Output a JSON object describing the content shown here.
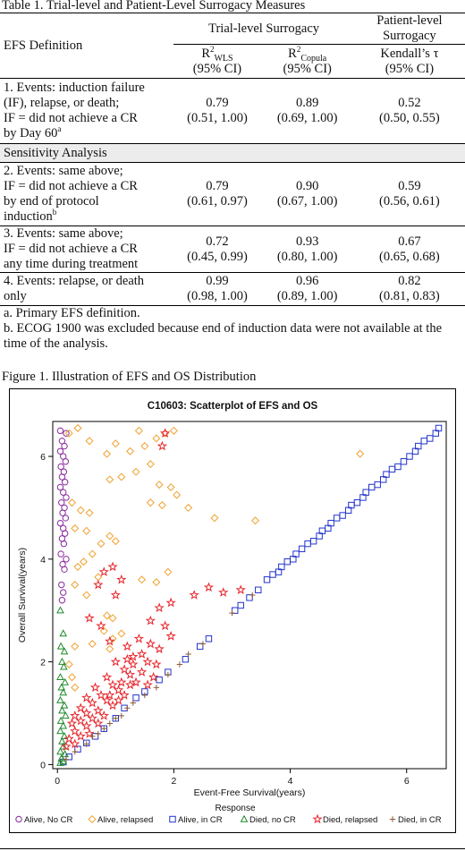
{
  "table": {
    "caption": "Table 1. Trial-level and Patient-Level Surrogacy Measures",
    "header": {
      "efs_definition": "EFS Definition",
      "trial_level": "Trial-level Surrogacy",
      "patient_level_line1": "Patient-level",
      "patient_level_line2": "Surrogacy",
      "r2_wls_main": "R",
      "r2_wls_sup": "2",
      "r2_wls_sub": "WLS",
      "r2_copula_main": "R",
      "r2_copula_sup": "2",
      "r2_copula_sub": "Copula",
      "kendall": "Kendall’s τ",
      "ci": "(95% CI)"
    },
    "rows": [
      {
        "def_lines": [
          "1. Events: induction failure",
          "(IF), relapse, or death;",
          "IF = did not achieve a CR",
          "by Day 60"
        ],
        "def_sup": "a",
        "wls": "0.79",
        "wls_ci": "(0.51, 1.00)",
        "copula": "0.89",
        "copula_ci": "(0.69, 1.00)",
        "kendall": "0.52",
        "kendall_ci": "(0.50, 0.55)"
      },
      {
        "def_lines": [
          "2. Events: same above;",
          "IF = did not achieve a CR",
          "by end of protocol",
          "induction"
        ],
        "def_sup": "b",
        "wls": "0.79",
        "wls_ci": "(0.61, 0.97)",
        "copula": "0.90",
        "copula_ci": "(0.67, 1.00)",
        "kendall": "0.59",
        "kendall_ci": "(0.56, 0.61)"
      },
      {
        "def_lines": [
          "3. Events: same above;",
          "IF = did not achieve a CR",
          "any time during treatment"
        ],
        "wls": "0.72",
        "wls_ci": "(0.45, 0.99)",
        "copula": "0.93",
        "copula_ci": "(0.80, 1.00)",
        "kendall": "0.67",
        "kendall_ci": "(0.65, 0.68)"
      },
      {
        "def_lines": [
          "4. Events: relapse, or death",
          "only"
        ],
        "wls": "0.99",
        "wls_ci": "(0.98, 1.00)",
        "copula": "0.96",
        "copula_ci": "(0.89, 1.00)",
        "kendall": "0.82",
        "kendall_ci": "(0.81, 0.83)"
      }
    ],
    "sensitivity_label": "Sensitivity Analysis",
    "footnote_a": "a. Primary EFS definition.",
    "footnote_b": "b. ECOG 1900 was excluded because end of induction data were not available at the time of the analysis."
  },
  "figure": {
    "caption": "Figure 1. Illustration of EFS and OS Distribution"
  },
  "chart_data": {
    "type": "scatter",
    "title": "C10603: Scatterplot of EFS and OS",
    "xlabel": "Event-Free Survival(years)",
    "ylabel": "Overall Survival(years)",
    "xlim": [
      0,
      6.6
    ],
    "ylim": [
      0,
      6.6
    ],
    "xticks": [
      "0",
      "2",
      "4",
      "6"
    ],
    "yticks": [
      "0",
      "2",
      "4",
      "6"
    ],
    "legend_title": "Response",
    "legend_position": "bottom",
    "series": [
      {
        "name": "Alive, No CR",
        "marker": "circle",
        "color": "#8a2a9e",
        "points": [
          [
            0.05,
            6.5
          ],
          [
            0.15,
            6.45
          ],
          [
            0.08,
            6.3
          ],
          [
            0.12,
            6.2
          ],
          [
            0.05,
            6.1
          ],
          [
            0.1,
            6.0
          ],
          [
            0.14,
            5.9
          ],
          [
            0.06,
            5.8
          ],
          [
            0.11,
            5.7
          ],
          [
            0.08,
            5.6
          ],
          [
            0.13,
            5.5
          ],
          [
            0.05,
            5.4
          ],
          [
            0.1,
            5.3
          ],
          [
            0.15,
            5.2
          ],
          [
            0.07,
            5.1
          ],
          [
            0.12,
            5.0
          ],
          [
            0.09,
            4.9
          ],
          [
            0.14,
            4.8
          ],
          [
            0.05,
            4.7
          ],
          [
            0.1,
            4.6
          ],
          [
            0.13,
            4.5
          ],
          [
            0.08,
            4.4
          ],
          [
            0.11,
            4.3
          ],
          [
            0.06,
            4.1
          ],
          [
            0.15,
            4.0
          ],
          [
            0.09,
            3.9
          ],
          [
            0.12,
            3.8
          ],
          [
            0.07,
            3.5
          ],
          [
            0.1,
            3.35
          ],
          [
            0.08,
            3.2
          ]
        ]
      },
      {
        "name": "Alive, relapsed",
        "marker": "diamond",
        "color": "#f0a12e",
        "points": [
          [
            0.35,
            6.55
          ],
          [
            0.2,
            6.45
          ],
          [
            0.55,
            6.3
          ],
          [
            0.85,
            6.05
          ],
          [
            1.0,
            6.25
          ],
          [
            1.25,
            6.1
          ],
          [
            1.4,
            6.5
          ],
          [
            1.5,
            6.2
          ],
          [
            1.7,
            6.35
          ],
          [
            2.0,
            6.5
          ],
          [
            1.85,
            6.45
          ],
          [
            1.6,
            5.85
          ],
          [
            1.35,
            5.7
          ],
          [
            1.1,
            5.6
          ],
          [
            0.9,
            5.55
          ],
          [
            1.75,
            5.45
          ],
          [
            1.95,
            5.4
          ],
          [
            2.05,
            5.25
          ],
          [
            1.6,
            5.1
          ],
          [
            1.8,
            5.05
          ],
          [
            2.25,
            5.0
          ],
          [
            2.7,
            4.8
          ],
          [
            3.4,
            4.75
          ],
          [
            0.25,
            5.1
          ],
          [
            0.4,
            4.95
          ],
          [
            0.55,
            4.9
          ],
          [
            0.3,
            4.6
          ],
          [
            0.5,
            4.55
          ],
          [
            0.75,
            4.3
          ],
          [
            1.0,
            4.35
          ],
          [
            0.9,
            4.45
          ],
          [
            0.6,
            4.1
          ],
          [
            0.45,
            3.95
          ],
          [
            0.35,
            3.85
          ],
          [
            0.7,
            3.65
          ],
          [
            0.3,
            3.5
          ],
          [
            0.5,
            3.3
          ],
          [
            1.45,
            3.6
          ],
          [
            1.7,
            3.55
          ],
          [
            1.9,
            3.75
          ],
          [
            0.85,
            2.9
          ],
          [
            0.95,
            2.85
          ],
          [
            0.8,
            2.6
          ],
          [
            0.95,
            2.45
          ],
          [
            0.6,
            2.35
          ],
          [
            0.9,
            2.25
          ],
          [
            0.3,
            2.3
          ],
          [
            0.2,
            1.95
          ],
          [
            0.25,
            1.7
          ],
          [
            0.3,
            1.5
          ],
          [
            1.1,
            2.55
          ],
          [
            5.2,
            6.05
          ]
        ]
      },
      {
        "name": "Alive, in CR",
        "marker": "square",
        "color": "#2233cc",
        "points": [
          [
            3.05,
            3.0
          ],
          [
            3.15,
            3.1
          ],
          [
            3.3,
            3.25
          ],
          [
            3.45,
            3.4
          ],
          [
            3.6,
            3.6
          ],
          [
            3.7,
            3.7
          ],
          [
            3.8,
            3.75
          ],
          [
            3.85,
            3.85
          ],
          [
            3.95,
            3.95
          ],
          [
            4.05,
            4.0
          ],
          [
            4.1,
            4.1
          ],
          [
            4.2,
            4.2
          ],
          [
            4.3,
            4.3
          ],
          [
            4.4,
            4.35
          ],
          [
            4.5,
            4.45
          ],
          [
            4.55,
            4.55
          ],
          [
            4.65,
            4.6
          ],
          [
            4.7,
            4.7
          ],
          [
            4.8,
            4.8
          ],
          [
            4.9,
            4.85
          ],
          [
            5.0,
            4.95
          ],
          [
            5.05,
            5.05
          ],
          [
            5.15,
            5.1
          ],
          [
            5.25,
            5.2
          ],
          [
            5.3,
            5.3
          ],
          [
            5.4,
            5.4
          ],
          [
            5.5,
            5.45
          ],
          [
            5.6,
            5.55
          ],
          [
            5.65,
            5.65
          ],
          [
            5.75,
            5.75
          ],
          [
            5.85,
            5.8
          ],
          [
            5.95,
            5.9
          ],
          [
            6.05,
            6.0
          ],
          [
            6.15,
            6.1
          ],
          [
            6.2,
            6.2
          ],
          [
            6.3,
            6.3
          ],
          [
            6.4,
            6.35
          ],
          [
            6.5,
            6.45
          ],
          [
            6.55,
            6.55
          ],
          [
            2.6,
            2.45
          ],
          [
            2.45,
            2.3
          ],
          [
            2.2,
            2.05
          ],
          [
            1.9,
            1.8
          ],
          [
            1.75,
            1.65
          ],
          [
            1.5,
            1.42
          ],
          [
            1.35,
            1.3
          ],
          [
            1.15,
            1.1
          ],
          [
            1.0,
            0.9
          ],
          [
            0.8,
            0.7
          ],
          [
            0.65,
            0.55
          ],
          [
            0.5,
            0.42
          ],
          [
            0.35,
            0.3
          ],
          [
            0.2,
            0.15
          ],
          [
            0.1,
            0.05
          ]
        ]
      },
      {
        "name": "Died, no CR",
        "marker": "triangle",
        "color": "#1f8a2c",
        "points": [
          [
            0.05,
            3.0
          ],
          [
            0.1,
            2.55
          ],
          [
            0.06,
            2.3
          ],
          [
            0.12,
            2.2
          ],
          [
            0.08,
            2.0
          ],
          [
            0.11,
            1.9
          ],
          [
            0.05,
            1.7
          ],
          [
            0.13,
            1.6
          ],
          [
            0.07,
            1.5
          ],
          [
            0.1,
            1.4
          ],
          [
            0.05,
            1.25
          ],
          [
            0.12,
            1.15
          ],
          [
            0.08,
            1.05
          ],
          [
            0.14,
            0.95
          ],
          [
            0.06,
            0.85
          ],
          [
            0.1,
            0.75
          ],
          [
            0.05,
            0.65
          ],
          [
            0.12,
            0.55
          ],
          [
            0.08,
            0.45
          ],
          [
            0.1,
            0.35
          ],
          [
            0.05,
            0.25
          ],
          [
            0.13,
            0.2
          ],
          [
            0.07,
            0.12
          ],
          [
            0.1,
            0.06
          ],
          [
            0.05,
            0.03
          ]
        ]
      },
      {
        "name": "Died, relapsed",
        "marker": "star",
        "color": "#e8232a",
        "points": [
          [
            1.85,
            6.45
          ],
          [
            1.8,
            6.2
          ],
          [
            1.95,
            3.15
          ],
          [
            1.75,
            3.05
          ],
          [
            2.35,
            3.3
          ],
          [
            2.6,
            3.45
          ],
          [
            2.85,
            3.35
          ],
          [
            3.15,
            3.4
          ],
          [
            1.6,
            2.8
          ],
          [
            1.85,
            2.7
          ],
          [
            1.95,
            2.5
          ],
          [
            1.6,
            2.35
          ],
          [
            1.75,
            2.25
          ],
          [
            1.45,
            2.15
          ],
          [
            1.55,
            2.0
          ],
          [
            1.7,
            1.95
          ],
          [
            0.95,
            3.85
          ],
          [
            0.8,
            3.75
          ],
          [
            1.1,
            3.6
          ],
          [
            0.7,
            3.5
          ],
          [
            1.0,
            3.3
          ],
          [
            0.55,
            2.85
          ],
          [
            0.75,
            2.7
          ],
          [
            0.9,
            2.4
          ],
          [
            1.2,
            2.3
          ],
          [
            1.3,
            2.1
          ],
          [
            1.4,
            2.45
          ],
          [
            1.0,
            2.0
          ],
          [
            1.15,
            1.85
          ],
          [
            1.25,
            1.75
          ],
          [
            1.35,
            1.6
          ],
          [
            0.85,
            1.7
          ],
          [
            0.95,
            1.55
          ],
          [
            1.05,
            1.45
          ],
          [
            1.15,
            1.35
          ],
          [
            0.65,
            1.5
          ],
          [
            0.75,
            1.35
          ],
          [
            0.85,
            1.25
          ],
          [
            0.95,
            1.15
          ],
          [
            0.5,
            1.3
          ],
          [
            0.6,
            1.2
          ],
          [
            0.7,
            1.05
          ],
          [
            0.8,
            0.95
          ],
          [
            0.4,
            1.1
          ],
          [
            0.5,
            1.0
          ],
          [
            0.6,
            0.9
          ],
          [
            0.7,
            0.8
          ],
          [
            0.3,
            0.95
          ],
          [
            0.4,
            0.85
          ],
          [
            0.5,
            0.75
          ],
          [
            0.55,
            0.6
          ],
          [
            0.25,
            0.8
          ],
          [
            0.3,
            0.65
          ],
          [
            0.4,
            0.55
          ],
          [
            0.2,
            0.5
          ],
          [
            0.3,
            0.4
          ],
          [
            0.15,
            0.35
          ],
          [
            1.55,
            1.55
          ],
          [
            1.65,
            1.7
          ],
          [
            1.45,
            1.8
          ],
          [
            1.25,
            1.55
          ],
          [
            1.1,
            1.6
          ],
          [
            0.9,
            1.35
          ],
          [
            1.3,
            1.95
          ],
          [
            1.2,
            2.05
          ],
          [
            1.05,
            1.25
          ]
        ]
      },
      {
        "name": "Died, in CR",
        "marker": "plus",
        "color": "#8a5a3a",
        "points": [
          [
            2.25,
            2.15
          ],
          [
            2.1,
            1.95
          ],
          [
            1.9,
            1.75
          ],
          [
            1.7,
            1.5
          ],
          [
            1.5,
            1.35
          ],
          [
            1.3,
            1.2
          ],
          [
            1.1,
            0.95
          ],
          [
            0.9,
            0.8
          ],
          [
            0.7,
            0.6
          ],
          [
            0.5,
            0.4
          ],
          [
            0.3,
            0.25
          ],
          [
            0.15,
            0.1
          ],
          [
            0.6,
            0.55
          ],
          [
            0.8,
            0.7
          ],
          [
            1.0,
            0.9
          ],
          [
            1.2,
            1.1
          ],
          [
            2.5,
            2.35
          ],
          [
            3.0,
            2.95
          ],
          [
            3.35,
            3.3
          ]
        ]
      }
    ]
  }
}
